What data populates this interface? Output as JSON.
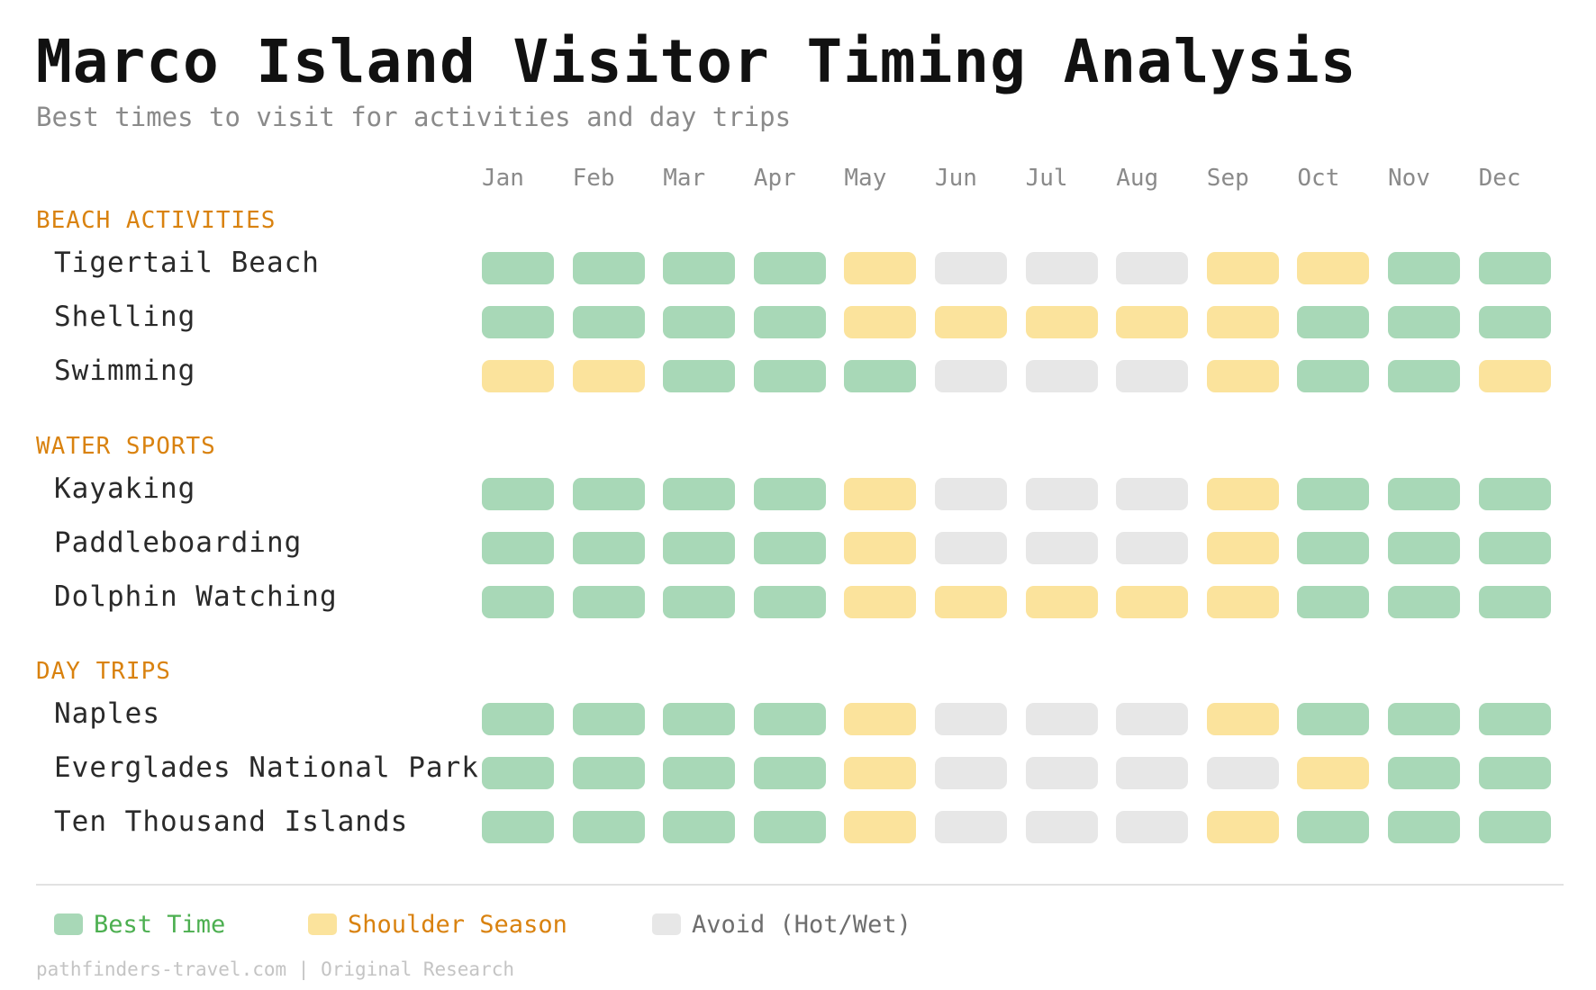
{
  "title": "Marco Island Visitor Timing Analysis",
  "subtitle": "Best times to visit for activities and day trips",
  "footer": "pathfinders-travel.com | Original Research",
  "colors": {
    "best": "#a8d8b7",
    "shoulder": "#fbe39c",
    "avoid": "#e7e7e7",
    "section": "#d9820f",
    "legend_best_text": "#4caf50",
    "legend_shoulder_text": "#d9820f",
    "legend_avoid_text": "#6e6e6e"
  },
  "legend": [
    {
      "key": "best",
      "label": "Best Time"
    },
    {
      "key": "shoulder",
      "label": "Shoulder Season"
    },
    {
      "key": "avoid",
      "label": "Avoid (Hot/Wet)"
    }
  ],
  "chart_data": {
    "type": "heatmap",
    "title": "Marco Island Visitor Timing Analysis",
    "subtitle": "Best times to visit for activities and day trips",
    "months": [
      "Jan",
      "Feb",
      "Mar",
      "Apr",
      "May",
      "Jun",
      "Jul",
      "Aug",
      "Sep",
      "Oct",
      "Nov",
      "Dec"
    ],
    "categories": [
      "best",
      "shoulder",
      "avoid"
    ],
    "sections": [
      {
        "label": "BEACH ACTIVITIES",
        "rows": [
          {
            "label": "Tigertail Beach",
            "values": [
              "best",
              "best",
              "best",
              "best",
              "shoulder",
              "avoid",
              "avoid",
              "avoid",
              "shoulder",
              "shoulder",
              "best",
              "best"
            ]
          },
          {
            "label": "Shelling",
            "values": [
              "best",
              "best",
              "best",
              "best",
              "shoulder",
              "shoulder",
              "shoulder",
              "shoulder",
              "shoulder",
              "best",
              "best",
              "best"
            ]
          },
          {
            "label": "Swimming",
            "values": [
              "shoulder",
              "shoulder",
              "best",
              "best",
              "best",
              "avoid",
              "avoid",
              "avoid",
              "shoulder",
              "best",
              "best",
              "shoulder"
            ]
          }
        ]
      },
      {
        "label": "WATER SPORTS",
        "rows": [
          {
            "label": "Kayaking",
            "values": [
              "best",
              "best",
              "best",
              "best",
              "shoulder",
              "avoid",
              "avoid",
              "avoid",
              "shoulder",
              "best",
              "best",
              "best"
            ]
          },
          {
            "label": "Paddleboarding",
            "values": [
              "best",
              "best",
              "best",
              "best",
              "shoulder",
              "avoid",
              "avoid",
              "avoid",
              "shoulder",
              "best",
              "best",
              "best"
            ]
          },
          {
            "label": "Dolphin Watching",
            "values": [
              "best",
              "best",
              "best",
              "best",
              "shoulder",
              "shoulder",
              "shoulder",
              "shoulder",
              "shoulder",
              "best",
              "best",
              "best"
            ]
          }
        ]
      },
      {
        "label": "DAY TRIPS",
        "rows": [
          {
            "label": "Naples",
            "values": [
              "best",
              "best",
              "best",
              "best",
              "shoulder",
              "avoid",
              "avoid",
              "avoid",
              "shoulder",
              "best",
              "best",
              "best"
            ]
          },
          {
            "label": "Everglades National Park",
            "values": [
              "best",
              "best",
              "best",
              "best",
              "shoulder",
              "avoid",
              "avoid",
              "avoid",
              "avoid",
              "shoulder",
              "best",
              "best"
            ]
          },
          {
            "label": "Ten Thousand Islands",
            "values": [
              "best",
              "best",
              "best",
              "best",
              "shoulder",
              "avoid",
              "avoid",
              "avoid",
              "shoulder",
              "best",
              "best",
              "best"
            ]
          }
        ]
      }
    ]
  }
}
